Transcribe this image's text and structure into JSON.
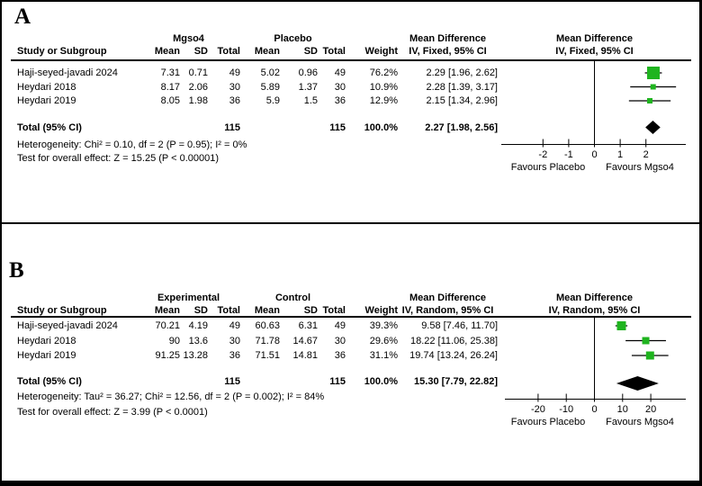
{
  "figure_title": "",
  "chart_data": [
    {
      "type": "forest",
      "panel_label": "A",
      "model": "Fixed",
      "group1": "Mgso4",
      "group2": "Placebo",
      "columns": {
        "study": "Study or Subgroup",
        "mean": "Mean",
        "sd": "SD",
        "total": "Total",
        "weight": "Weight"
      },
      "effect_header": [
        "Mean Difference",
        "IV, Fixed, 95% CI"
      ],
      "plot_header": [
        "Mean Difference",
        "IV, Fixed, 95% CI"
      ],
      "studies": [
        {
          "name": "Haji-seyed-javadi 2024",
          "mean1": "7.31",
          "sd1": "0.71",
          "total1": "49",
          "mean2": "5.02",
          "sd2": "0.96",
          "total2": "49",
          "weight": "76.2%",
          "effect_label": "2.29 [1.96, 2.62]",
          "est": 2.29,
          "ci_low": 1.96,
          "ci_high": 2.62,
          "marker_size": 14
        },
        {
          "name": "Heydari 2018",
          "mean1": "8.17",
          "sd1": "2.06",
          "total1": "30",
          "mean2": "5.89",
          "sd2": "1.37",
          "total2": "30",
          "weight": "10.9%",
          "effect_label": "2.28 [1.39, 3.17]",
          "est": 2.28,
          "ci_low": 1.39,
          "ci_high": 3.17,
          "marker_size": 6
        },
        {
          "name": "Heydari 2019",
          "mean1": "8.05",
          "sd1": "1.98",
          "total1": "36",
          "mean2": "5.9",
          "sd2": "1.5",
          "total2": "36",
          "weight": "12.9%",
          "effect_label": "2.15 [1.34, 2.96]",
          "est": 2.15,
          "ci_low": 1.34,
          "ci_high": 2.96,
          "marker_size": 6
        }
      ],
      "total_row": {
        "label": "Total (95% CI)",
        "total1": "115",
        "total2": "115",
        "weight": "100.0%",
        "effect_label": "2.27 [1.98, 2.56]",
        "est": 2.27,
        "ci_low": 1.98,
        "ci_high": 2.56
      },
      "heterogeneity": "Heterogeneity: Chi² = 0.10, df = 2 (P = 0.95); I² = 0%",
      "overall_effect": "Test for overall effect: Z = 15.25 (P < 0.00001)",
      "axis_ticks": [
        -2,
        -1,
        0,
        1,
        2
      ],
      "favours_left": "Favours Placebo",
      "favours_right": "Favours Mgso4",
      "marker_color": "#1fb41f",
      "diamond_color": "#000000"
    },
    {
      "type": "forest",
      "panel_label": "B",
      "model": "Random",
      "group1": "Experimental",
      "group2": "Control",
      "columns": {
        "study": "Study or Subgroup",
        "mean": "Mean",
        "sd": "SD",
        "total": "Total",
        "weight": "Weight"
      },
      "effect_header": [
        "Mean Difference",
        "IV, Random, 95% CI"
      ],
      "plot_header": [
        "Mean Difference",
        "IV, Random, 95% CI"
      ],
      "studies": [
        {
          "name": "Haji-seyed-javadi 2024",
          "mean1": "70.21",
          "sd1": "4.19",
          "total1": "49",
          "mean2": "60.63",
          "sd2": "6.31",
          "total2": "49",
          "weight": "39.3%",
          "effect_label": "9.58 [7.46, 11.70]",
          "est": 9.58,
          "ci_low": 7.46,
          "ci_high": 11.7,
          "marker_size": 10
        },
        {
          "name": "Heydari 2018",
          "mean1": "90",
          "sd1": "13.6",
          "total1": "30",
          "mean2": "71.78",
          "sd2": "14.67",
          "total2": "30",
          "weight": "29.6%",
          "effect_label": "18.22 [11.06, 25.38]",
          "est": 18.22,
          "ci_low": 11.06,
          "ci_high": 25.38,
          "marker_size": 8
        },
        {
          "name": "Heydari 2019",
          "mean1": "91.25",
          "sd1": "13.28",
          "total1": "36",
          "mean2": "71.51",
          "sd2": "14.81",
          "total2": "36",
          "weight": "31.1%",
          "effect_label": "19.74 [13.24, 26.24]",
          "est": 19.74,
          "ci_low": 13.24,
          "ci_high": 26.24,
          "marker_size": 9
        }
      ],
      "total_row": {
        "label": "Total (95% CI)",
        "total1": "115",
        "total2": "115",
        "weight": "100.0%",
        "effect_label": "15.30 [7.79, 22.82]",
        "est": 15.3,
        "ci_low": 7.79,
        "ci_high": 22.82
      },
      "heterogeneity": "Heterogeneity: Tau² = 36.27; Chi² = 12.56, df = 2 (P = 0.002); I² = 84%",
      "overall_effect": "Test for overall effect: Z = 3.99 (P < 0.0001)",
      "axis_ticks": [
        -20,
        -10,
        0,
        10,
        20
      ],
      "favours_left": "Favours Placebo",
      "favours_right": "Favours Mgso4",
      "marker_color": "#1fb41f",
      "diamond_color": "#000000"
    }
  ]
}
